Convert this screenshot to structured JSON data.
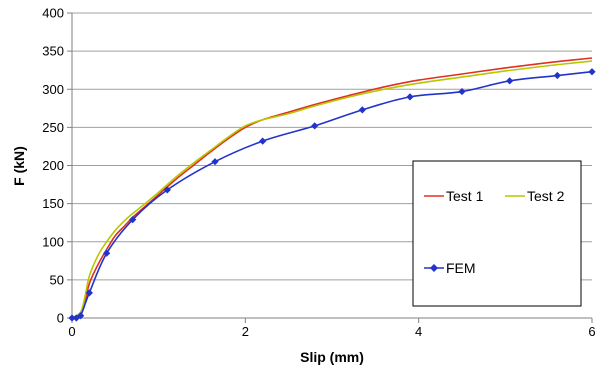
{
  "chart_data": {
    "type": "line",
    "title": "",
    "xlabel": "Slip (mm)",
    "ylabel": "F (kN)",
    "xlim": [
      0,
      6
    ],
    "ylim": [
      0,
      400
    ],
    "x_ticks": [
      0,
      2,
      4,
      6
    ],
    "y_ticks": [
      0,
      50,
      100,
      150,
      200,
      250,
      300,
      350,
      400
    ],
    "grid": "horizontal",
    "legend_position": "right",
    "series": [
      {
        "name": "Test 1",
        "color": "#e03020",
        "marker": "none",
        "x": [
          0.0,
          0.1,
          0.15,
          0.2,
          0.3,
          0.4,
          0.5,
          0.6,
          0.7,
          0.8,
          1.0,
          1.2,
          1.4,
          1.6,
          1.8,
          2.0,
          2.2,
          2.5,
          2.8,
          3.2,
          3.6,
          4.0,
          4.5,
          5.0,
          5.5,
          6.0
        ],
        "y": [
          0,
          5,
          20,
          45,
          70,
          90,
          108,
          120,
          132,
          142,
          162,
          182,
          200,
          218,
          235,
          250,
          260,
          270,
          280,
          292,
          303,
          312,
          320,
          328,
          335,
          341
        ]
      },
      {
        "name": "Test 2",
        "color": "#b5c800",
        "marker": "none",
        "x": [
          0.0,
          0.1,
          0.15,
          0.2,
          0.3,
          0.4,
          0.5,
          0.6,
          0.7,
          0.8,
          1.0,
          1.2,
          1.4,
          1.6,
          1.8,
          2.0,
          2.2,
          2.5,
          2.8,
          3.2,
          3.6,
          4.0,
          4.5,
          5.0,
          5.5,
          6.0
        ],
        "y": [
          0,
          8,
          28,
          55,
          82,
          100,
          115,
          127,
          137,
          146,
          165,
          185,
          203,
          220,
          237,
          252,
          260,
          268,
          278,
          290,
          300,
          308,
          316,
          324,
          331,
          337
        ]
      },
      {
        "name": "FEM",
        "color": "#2233cc",
        "marker": "diamond",
        "x": [
          0.0,
          0.05,
          0.1,
          0.2,
          0.4,
          0.7,
          1.1,
          1.65,
          2.2,
          2.8,
          3.35,
          3.9,
          4.5,
          5.05,
          5.6,
          6.0
        ],
        "y": [
          0,
          0,
          3,
          33,
          85,
          129,
          168,
          205,
          232,
          252,
          273,
          290,
          297,
          311,
          318,
          323
        ]
      }
    ]
  }
}
